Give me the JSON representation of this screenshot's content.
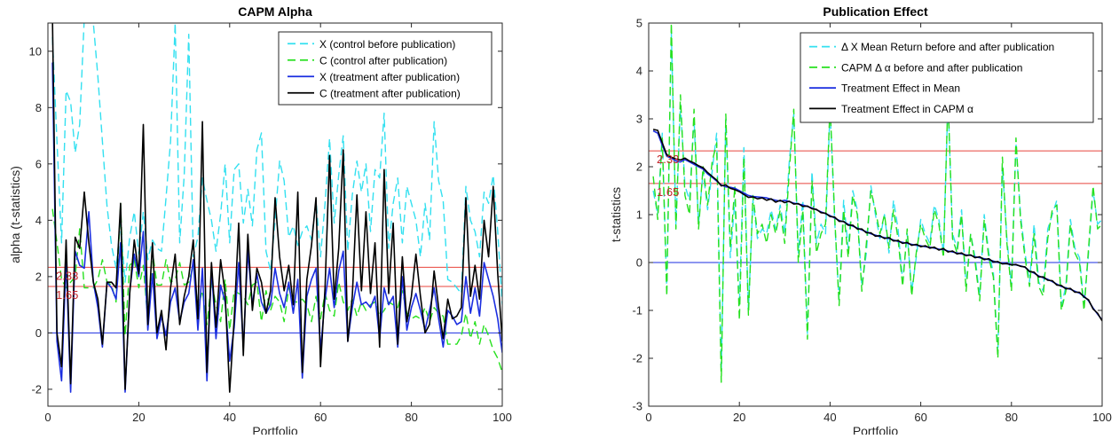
{
  "chart_data": [
    {
      "type": "line",
      "title": "CAPM Alpha",
      "xlabel": "Portfolio",
      "ylabel": "alpha (t-statistics)",
      "xlim": [
        0,
        100
      ],
      "ylim": [
        -2.6,
        11
      ],
      "xticks": [
        0,
        20,
        40,
        60,
        80,
        100
      ],
      "yticks": [
        -2,
        0,
        2,
        4,
        6,
        8,
        10
      ],
      "grid": false,
      "legend_position": "top-right",
      "hlines": [
        {
          "y": 2.33,
          "label": "2.33",
          "color": "#e8453c"
        },
        {
          "y": 1.65,
          "label": "1.65",
          "color": "#e8453c"
        },
        {
          "y": 0,
          "label": "",
          "color": "#1b2ee0"
        }
      ],
      "x": [
        1,
        2,
        3,
        4,
        5,
        6,
        7,
        8,
        9,
        10,
        11,
        12,
        13,
        14,
        15,
        16,
        17,
        18,
        19,
        20,
        21,
        22,
        23,
        24,
        25,
        26,
        27,
        28,
        29,
        30,
        31,
        32,
        33,
        34,
        35,
        36,
        37,
        38,
        39,
        40,
        41,
        42,
        43,
        44,
        45,
        46,
        47,
        48,
        49,
        50,
        51,
        52,
        53,
        54,
        55,
        56,
        57,
        58,
        59,
        60,
        61,
        62,
        63,
        64,
        65,
        66,
        67,
        68,
        69,
        70,
        71,
        72,
        73,
        74,
        75,
        76,
        77,
        78,
        79,
        80,
        81,
        82,
        83,
        84,
        85,
        86,
        87,
        88,
        89,
        90,
        91,
        92,
        93,
        94,
        95,
        96,
        97,
        98,
        99,
        100
      ],
      "series": [
        {
          "name": "X (control before publication)",
          "color": "#33e0f0",
          "dash": "dashed",
          "values": [
            10.5,
            6.8,
            3.2,
            8.6,
            8.2,
            6.4,
            7.4,
            11.2,
            11.2,
            11.0,
            9.1,
            6.8,
            4.5,
            3.1,
            2.3,
            3.9,
            1.8,
            3.4,
            4.3,
            2.8,
            4.3,
            2.6,
            3.3,
            3.0,
            2.9,
            4.8,
            6.8,
            11.0,
            3.2,
            5.6,
            10.6,
            2.7,
            3.4,
            5.5,
            4.7,
            4.0,
            2.9,
            4.2,
            6.0,
            3.2,
            5.8,
            6.0,
            3.9,
            5.1,
            3.8,
            6.5,
            7.1,
            2.9,
            2.2,
            4.0,
            6.1,
            5.4,
            3.4,
            3.8,
            3.1,
            3.6,
            3.8,
            3.3,
            4.7,
            2.7,
            4.6,
            6.9,
            3.9,
            5.6,
            7.0,
            2.9,
            4.9,
            6.1,
            5.0,
            6.0,
            3.6,
            5.8,
            5.5,
            7.8,
            3.0,
            4.6,
            5.5,
            3.2,
            5.2,
            4.6,
            4.0,
            2.7,
            4.6,
            3.3,
            7.5,
            5.4,
            4.7,
            1.9,
            1.8,
            1.6,
            1.4,
            5.2,
            4.0,
            3.6,
            2.7,
            5.0,
            4.6,
            5.6,
            3.6,
            1.0
          ]
        },
        {
          "name": "C (control after publication)",
          "color": "#26e01e",
          "dash": "dashed",
          "values": [
            4.4,
            3.2,
            1.9,
            1.6,
            1.8,
            2.0,
            3.7,
            1.6,
            1.6,
            1.6,
            1.9,
            2.6,
            1.8,
            1.7,
            1.1,
            4.6,
            -0.1,
            2.4,
            2.6,
            1.6,
            2.4,
            0.4,
            2.9,
            1.7,
            1.7,
            2.6,
            1.8,
            1.9,
            2.5,
            1.7,
            1.8,
            2.4,
            0.9,
            1.5,
            0.3,
            1.8,
            1.0,
            0.4,
            1.9,
            0.1,
            1.5,
            1.4,
            1.3,
            1.0,
            1.7,
            1.8,
            0.4,
            1.5,
            0.8,
            1.3,
            1.1,
            0.4,
            1.6,
            1.1,
            1.1,
            1.2,
            1.0,
            0.4,
            1.3,
            0.5,
            1.4,
            0.8,
            0.6,
            1.8,
            1.1,
            0.8,
            1.2,
            0.6,
            1.1,
            0.8,
            1.0,
            1.1,
            0.6,
            0.8,
            1.1,
            1.0,
            0.9,
            1.5,
            0.7,
            0.5,
            0.6,
            0.5,
            0.9,
            0.4,
            0.9,
            0.7,
            0.6,
            -0.4,
            -0.4,
            -0.4,
            -0.1,
            0.7,
            -0.2,
            0.4,
            -0.4,
            0.3,
            -0.1,
            -0.6,
            -0.9,
            -1.4
          ]
        },
        {
          "name": "X (treatment after publication)",
          "color": "#1b2ee0",
          "dash": "solid",
          "values": [
            9.6,
            -0.3,
            -1.7,
            2.6,
            -2.1,
            2.9,
            2.4,
            2.3,
            4.3,
            1.8,
            0.9,
            -0.5,
            1.8,
            1.6,
            1.2,
            3.2,
            -2.1,
            1.5,
            2.8,
            2.0,
            3.6,
            0.1,
            2.1,
            -0.2,
            0.6,
            -0.1,
            1.1,
            1.6,
            0.4,
            1.1,
            1.4,
            2.6,
            0.1,
            2.3,
            -1.7,
            2.3,
            -0.2,
            1.7,
            1.1,
            -1.0,
            0.2,
            2.5,
            -0.5,
            2.9,
            1.0,
            2.1,
            1.1,
            0.7,
            1.0,
            2.3,
            1.4,
            0.9,
            1.8,
            0.7,
            1.9,
            -1.6,
            1.3,
            1.9,
            2.3,
            -0.6,
            1.2,
            2.3,
            0.9,
            2.2,
            2.9,
            -0.3,
            0.9,
            1.8,
            1.0,
            1.1,
            0.9,
            1.3,
            -0.2,
            1.6,
            1.0,
            1.3,
            -0.5,
            2.0,
            0.1,
            0.9,
            1.4,
            0.8,
            0.1,
            0.8,
            1.6,
            0.5,
            -0.5,
            0.8,
            0.6,
            0.3,
            0.4,
            2.0,
            0.7,
            1.6,
            0.6,
            2.5,
            1.9,
            1.3,
            0.5,
            -0.7
          ]
        },
        {
          "name": "C (treatment after publication)",
          "color": "#000000",
          "dash": "solid",
          "values": [
            11.2,
            0.0,
            -1.2,
            3.3,
            -1.8,
            3.4,
            3.0,
            5.0,
            3.2,
            1.8,
            1.2,
            -0.4,
            1.8,
            1.8,
            1.6,
            4.6,
            -2.0,
            1.4,
            3.3,
            2.1,
            7.4,
            0.3,
            3.2,
            0.0,
            0.8,
            -0.6,
            1.6,
            2.8,
            0.3,
            1.3,
            2.0,
            3.3,
            0.5,
            7.5,
            -1.4,
            2.5,
            0.2,
            2.6,
            1.4,
            -2.1,
            0.5,
            3.9,
            -0.8,
            3.5,
            0.8,
            2.3,
            1.8,
            0.7,
            1.5,
            4.8,
            2.7,
            1.5,
            2.4,
            1.0,
            5.0,
            -1.4,
            1.9,
            3.1,
            4.8,
            -1.2,
            1.6,
            6.3,
            1.2,
            3.0,
            6.5,
            -0.3,
            1.3,
            4.9,
            1.5,
            4.3,
            1.4,
            3.2,
            -0.5,
            5.8,
            1.4,
            3.9,
            -0.4,
            2.7,
            0.4,
            1.3,
            2.8,
            1.3,
            0.0,
            0.3,
            2.2,
            0.9,
            -0.2,
            1.2,
            0.5,
            0.6,
            0.9,
            4.8,
            1.3,
            2.4,
            1.2,
            4.0,
            2.7,
            5.2,
            2.1,
            -0.3
          ]
        }
      ]
    },
    {
      "type": "line",
      "title": "Publication Effect",
      "xlabel": "Portfolio",
      "ylabel": "t-statistics",
      "xlim": [
        0,
        100
      ],
      "ylim": [
        -3,
        5
      ],
      "xticks": [
        0,
        20,
        40,
        60,
        80,
        100
      ],
      "yticks": [
        -3,
        -2,
        -1,
        0,
        1,
        2,
        3,
        4,
        5
      ],
      "grid": false,
      "legend_position": "top-right",
      "hlines": [
        {
          "y": 2.33,
          "label": "2.33",
          "color": "#e8453c"
        },
        {
          "y": 1.65,
          "label": "1.65",
          "color": "#e8453c"
        },
        {
          "y": 0,
          "label": "",
          "color": "#1b2ee0"
        }
      ],
      "x": [
        1,
        2,
        3,
        4,
        5,
        6,
        7,
        8,
        9,
        10,
        11,
        12,
        13,
        14,
        15,
        16,
        17,
        18,
        19,
        20,
        21,
        22,
        23,
        24,
        25,
        26,
        27,
        28,
        29,
        30,
        31,
        32,
        33,
        34,
        35,
        36,
        37,
        38,
        39,
        40,
        41,
        42,
        43,
        44,
        45,
        46,
        47,
        48,
        49,
        50,
        51,
        52,
        53,
        54,
        55,
        56,
        57,
        58,
        59,
        60,
        61,
        62,
        63,
        64,
        65,
        66,
        67,
        68,
        69,
        70,
        71,
        72,
        73,
        74,
        75,
        76,
        77,
        78,
        79,
        80,
        81,
        82,
        83,
        84,
        85,
        86,
        87,
        88,
        89,
        90,
        91,
        92,
        93,
        94,
        95,
        96,
        97,
        98,
        99,
        100
      ],
      "series": [
        {
          "name": "Δ X Mean Return before and after publication",
          "color": "#33e0f0",
          "dash": "dashed",
          "values": [
            1.5,
            1.0,
            2.7,
            -0.6,
            4.8,
            0.8,
            3.3,
            1.6,
            1.3,
            3.0,
            0.8,
            1.9,
            1.1,
            1.9,
            2.7,
            -2.3,
            3.0,
            0.1,
            1.3,
            -0.9,
            2.4,
            -1.0,
            1.3,
            0.5,
            0.7,
            0.6,
            1.1,
            0.7,
            1.2,
            0.6,
            2.1,
            3.1,
            0.2,
            1.3,
            -1.5,
            1.9,
            0.4,
            0.8,
            0.6,
            3.2,
            0.9,
            -0.8,
            1.3,
            0.3,
            1.5,
            1.1,
            -0.5,
            0.2,
            1.6,
            1.0,
            0.5,
            1.0,
            0.2,
            1.3,
            0.7,
            -0.4,
            0.6,
            -0.6,
            0.1,
            0.9,
            0.6,
            0.4,
            1.2,
            0.9,
            0.2,
            3.4,
            0.6,
            0.3,
            1.1,
            -0.5,
            0.6,
            0.1,
            -0.7,
            1.0,
            0.2,
            -0.2,
            -1.9,
            2.0,
            0.5,
            -0.5,
            2.5,
            1.0,
            0.2,
            -0.4,
            0.8,
            -0.4,
            -0.6,
            0.7,
            1.0,
            1.3,
            -0.9,
            -0.5,
            0.9,
            0.3,
            0.1,
            -0.9,
            0.2,
            1.5,
            0.8,
            0.9
          ]
        },
        {
          "name": "CAPM Δ α before and after publication",
          "color": "#26e01e",
          "dash": "dashed",
          "values": [
            1.8,
            0.9,
            2.6,
            -0.7,
            5.0,
            0.7,
            3.5,
            1.4,
            1.0,
            3.2,
            0.7,
            2.0,
            1.2,
            2.1,
            2.5,
            -2.5,
            3.1,
            0.3,
            1.6,
            -1.2,
            2.2,
            -1.1,
            1.4,
            0.6,
            0.8,
            0.4,
            1.0,
            0.6,
            1.1,
            0.4,
            1.9,
            3.2,
            0.0,
            1.1,
            -1.6,
            1.7,
            0.2,
            0.6,
            0.8,
            3.3,
            1.0,
            -0.9,
            1.1,
            0.1,
            1.4,
            1.0,
            -0.6,
            0.4,
            1.5,
            1.1,
            0.6,
            1.0,
            0.3,
            1.1,
            0.5,
            -0.5,
            0.7,
            -0.7,
            0.2,
            0.8,
            0.5,
            0.3,
            1.1,
            0.8,
            0.1,
            3.5,
            0.5,
            0.2,
            1.0,
            -0.6,
            0.6,
            0.0,
            -0.8,
            0.9,
            0.1,
            -0.3,
            -2.0,
            2.2,
            0.4,
            -0.6,
            2.6,
            0.9,
            0.1,
            -0.5,
            0.6,
            -0.5,
            -0.7,
            0.5,
            1.1,
            1.2,
            -1.0,
            -0.6,
            0.8,
            0.2,
            0.0,
            -1.0,
            0.3,
            1.6,
            0.7,
            0.8
          ]
        },
        {
          "name": "Treatment Effect in Mean",
          "color": "#1b2ee0",
          "dash": "solid",
          "values": [
            2.75,
            2.7,
            2.45,
            2.22,
            2.18,
            2.12,
            2.1,
            2.15,
            2.1,
            2.05,
            2.0,
            1.95,
            1.85,
            1.78,
            1.7,
            1.62,
            1.58,
            1.57,
            1.55,
            1.5,
            1.45,
            1.4,
            1.38,
            1.37,
            1.36,
            1.35,
            1.32,
            1.3,
            1.28,
            1.3,
            1.27,
            1.24,
            1.22,
            1.2,
            1.17,
            1.14,
            1.1,
            1.06,
            1.02,
            0.98,
            0.93,
            0.88,
            0.85,
            0.8,
            0.76,
            0.72,
            0.68,
            0.64,
            0.6,
            0.57,
            0.54,
            0.52,
            0.5,
            0.47,
            0.44,
            0.42,
            0.4,
            0.38,
            0.36,
            0.35,
            0.33,
            0.32,
            0.3,
            0.28,
            0.27,
            0.24,
            0.22,
            0.2,
            0.18,
            0.16,
            0.15,
            0.12,
            0.1,
            0.08,
            0.06,
            0.03,
            0.0,
            -0.02,
            -0.03,
            -0.04,
            -0.05,
            -0.07,
            -0.1,
            -0.18,
            -0.22,
            -0.28,
            -0.32,
            -0.35,
            -0.4,
            -0.45,
            -0.5,
            -0.53,
            -0.56,
            -0.6,
            -0.64,
            -0.7,
            -0.8,
            -0.95,
            -1.08,
            -1.2
          ]
        },
        {
          "name": "Treatment Effect in CAPM α",
          "color": "#000000",
          "dash": "solid",
          "values": [
            2.78,
            2.76,
            2.5,
            2.25,
            2.2,
            2.16,
            2.14,
            2.18,
            2.12,
            2.08,
            2.02,
            1.98,
            1.88,
            1.8,
            1.72,
            1.6,
            1.62,
            1.55,
            1.52,
            1.48,
            1.42,
            1.36,
            1.37,
            1.33,
            1.35,
            1.3,
            1.33,
            1.26,
            1.3,
            1.25,
            1.28,
            1.22,
            1.23,
            1.17,
            1.18,
            1.12,
            1.11,
            1.04,
            1.03,
            0.96,
            0.95,
            0.86,
            0.86,
            0.78,
            0.78,
            0.7,
            0.7,
            0.62,
            0.62,
            0.55,
            0.56,
            0.5,
            0.52,
            0.45,
            0.46,
            0.4,
            0.42,
            0.36,
            0.38,
            0.33,
            0.35,
            0.3,
            0.32,
            0.26,
            0.29,
            0.22,
            0.24,
            0.18,
            0.2,
            0.14,
            0.16,
            0.1,
            0.12,
            0.06,
            0.08,
            0.01,
            0.02,
            -0.03,
            -0.02,
            -0.05,
            -0.04,
            -0.08,
            -0.09,
            -0.19,
            -0.2,
            -0.3,
            -0.3,
            -0.37,
            -0.38,
            -0.47,
            -0.48,
            -0.55,
            -0.54,
            -0.62,
            -0.62,
            -0.72,
            -0.78,
            -0.97,
            -1.06,
            -1.22
          ]
        }
      ]
    }
  ]
}
